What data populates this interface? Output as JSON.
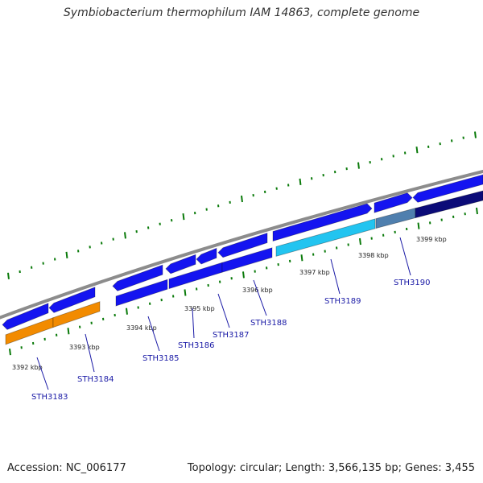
{
  "title": "Symbiobacterium thermophilum IAM 14863, complete genome",
  "footer": {
    "accession": "Accession: NC_006177",
    "stats": "Topology: circular; Length: 3,566,135 bp; Genes: 3,455"
  },
  "colors": {
    "forward": "#1414f0",
    "orange": "#f28b00",
    "cyan": "#22c4f0",
    "steel": "#4f7fae",
    "navy": "#0b0b78",
    "backbone": "#8c8c8c",
    "tick": "#0a7a0a",
    "label": "#1a1aa6"
  },
  "kbp_labels": [
    "3392 kbp",
    "3393 kbp",
    "3394 kbp",
    "3395 kbp",
    "3396 kbp",
    "3397 kbp",
    "3398 kbp",
    "3399 kbp"
  ],
  "genes": [
    "STH3183",
    "STH3184",
    "STH3185",
    "STH3186",
    "STH3187",
    "STH3188",
    "STH3189",
    "STH3190"
  ]
}
